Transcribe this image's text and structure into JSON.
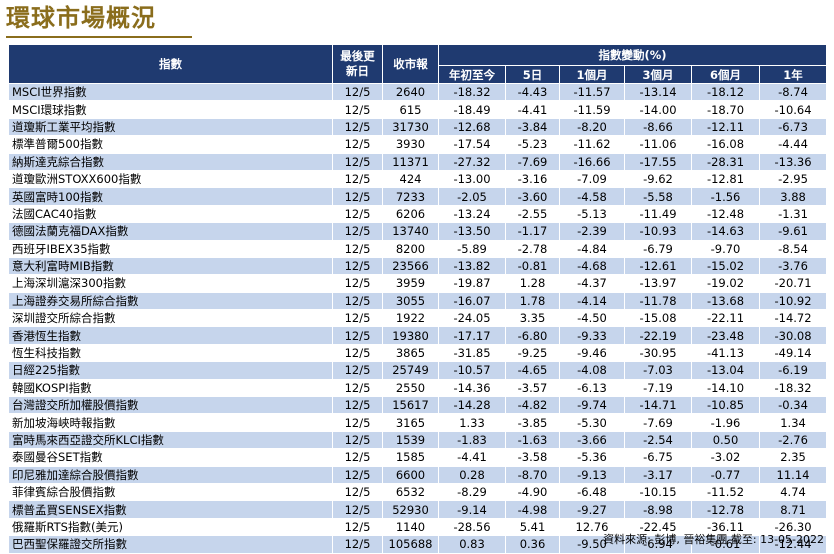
{
  "title": "環球市場概況",
  "headers": {
    "index": "指數",
    "last_update": "最後更新日",
    "close": "收市報",
    "change_group": "指數變動(%)",
    "periods": [
      "年初至今",
      "5日",
      "1個月",
      "3個月",
      "6個月",
      "1年"
    ]
  },
  "rows": [
    {
      "name": "MSCI世界指數",
      "date": "12/5",
      "close": "2640",
      "ytd": "-18.32",
      "d5": "-4.43",
      "m1": "-11.57",
      "m3": "-13.14",
      "m6": "-18.12",
      "y1": "-8.74"
    },
    {
      "name": "MSCI環球指數",
      "date": "12/5",
      "close": "615",
      "ytd": "-18.49",
      "d5": "-4.41",
      "m1": "-11.59",
      "m3": "-14.00",
      "m6": "-18.70",
      "y1": "-10.64"
    },
    {
      "name": "道瓊斯工業平均指數",
      "date": "12/5",
      "close": "31730",
      "ytd": "-12.68",
      "d5": "-3.84",
      "m1": "-8.20",
      "m3": "-8.66",
      "m6": "-12.11",
      "y1": "-6.73"
    },
    {
      "name": "標準普爾500指數",
      "date": "12/5",
      "close": "3930",
      "ytd": "-17.54",
      "d5": "-5.23",
      "m1": "-11.62",
      "m3": "-11.06",
      "m6": "-16.08",
      "y1": "-4.44"
    },
    {
      "name": "納斯達克綜合指數",
      "date": "12/5",
      "close": "11371",
      "ytd": "-27.32",
      "d5": "-7.69",
      "m1": "-16.66",
      "m3": "-17.55",
      "m6": "-28.31",
      "y1": "-13.36"
    },
    {
      "name": "道瓊歐洲STOXX600指數",
      "date": "12/5",
      "close": "424",
      "ytd": "-13.00",
      "d5": "-3.16",
      "m1": "-7.09",
      "m3": "-9.62",
      "m6": "-12.81",
      "y1": "-2.95"
    },
    {
      "name": "英國富時100指數",
      "date": "12/5",
      "close": "7233",
      "ytd": "-2.05",
      "d5": "-3.60",
      "m1": "-4.58",
      "m3": "-5.58",
      "m6": "-1.56",
      "y1": "3.88"
    },
    {
      "name": "法國CAC40指數",
      "date": "12/5",
      "close": "6206",
      "ytd": "-13.24",
      "d5": "-2.55",
      "m1": "-5.13",
      "m3": "-11.49",
      "m6": "-12.48",
      "y1": "-1.31"
    },
    {
      "name": "德國法蘭克福DAX指數",
      "date": "12/5",
      "close": "13740",
      "ytd": "-13.50",
      "d5": "-1.17",
      "m1": "-2.39",
      "m3": "-10.93",
      "m6": "-14.63",
      "y1": "-9.61"
    },
    {
      "name": "西班牙IBEX35指數",
      "date": "12/5",
      "close": "8200",
      "ytd": "-5.89",
      "d5": "-2.78",
      "m1": "-4.84",
      "m3": "-6.79",
      "m6": "-9.70",
      "y1": "-8.54"
    },
    {
      "name": "意大利富時MIB指數",
      "date": "12/5",
      "close": "23566",
      "ytd": "-13.82",
      "d5": "-0.81",
      "m1": "-4.68",
      "m3": "-12.61",
      "m6": "-15.02",
      "y1": "-3.76"
    },
    {
      "name": "上海深圳滬深300指數",
      "date": "12/5",
      "close": "3959",
      "ytd": "-19.87",
      "d5": "1.28",
      "m1": "-4.37",
      "m3": "-13.97",
      "m6": "-19.02",
      "y1": "-20.71"
    },
    {
      "name": "上海證券交易所綜合指數",
      "date": "12/5",
      "close": "3055",
      "ytd": "-16.07",
      "d5": "1.78",
      "m1": "-4.14",
      "m3": "-11.78",
      "m6": "-13.68",
      "y1": "-10.92"
    },
    {
      "name": "深圳證交所綜合指數",
      "date": "12/5",
      "close": "1922",
      "ytd": "-24.05",
      "d5": "3.35",
      "m1": "-4.50",
      "m3": "-15.08",
      "m6": "-22.11",
      "y1": "-14.72"
    },
    {
      "name": "香港恆生指數",
      "date": "12/5",
      "close": "19380",
      "ytd": "-17.17",
      "d5": "-6.80",
      "m1": "-9.33",
      "m3": "-22.19",
      "m6": "-23.48",
      "y1": "-30.08"
    },
    {
      "name": "恆生科技指數",
      "date": "12/5",
      "close": "3865",
      "ytd": "-31.85",
      "d5": "-9.25",
      "m1": "-9.46",
      "m3": "-30.95",
      "m6": "-41.13",
      "y1": "-49.14"
    },
    {
      "name": "日經225指數",
      "date": "12/5",
      "close": "25749",
      "ytd": "-10.57",
      "d5": "-4.65",
      "m1": "-4.08",
      "m3": "-7.03",
      "m6": "-13.04",
      "y1": "-6.19"
    },
    {
      "name": "韓國KOSPI指數",
      "date": "12/5",
      "close": "2550",
      "ytd": "-14.36",
      "d5": "-3.57",
      "m1": "-6.13",
      "m3": "-7.19",
      "m6": "-14.10",
      "y1": "-18.32"
    },
    {
      "name": "台灣證交所加權股價指數",
      "date": "12/5",
      "close": "15617",
      "ytd": "-14.28",
      "d5": "-4.82",
      "m1": "-9.74",
      "m3": "-14.71",
      "m6": "-10.85",
      "y1": "-0.34"
    },
    {
      "name": "新加坡海峽時報指數",
      "date": "12/5",
      "close": "3165",
      "ytd": "1.33",
      "d5": "-3.85",
      "m1": "-5.30",
      "m3": "-7.69",
      "m6": "-1.96",
      "y1": "1.34"
    },
    {
      "name": "富時馬來西亞證交所KLCI指數",
      "date": "12/5",
      "close": "1539",
      "ytd": "-1.83",
      "d5": "-1.63",
      "m1": "-3.66",
      "m3": "-2.54",
      "m6": "0.50",
      "y1": "-2.76"
    },
    {
      "name": "泰國曼谷SET指數",
      "date": "12/5",
      "close": "1585",
      "ytd": "-4.41",
      "d5": "-3.58",
      "m1": "-5.36",
      "m3": "-6.75",
      "m6": "-3.02",
      "y1": "2.35"
    },
    {
      "name": "印尼雅加達綜合股價指數",
      "date": "12/5",
      "close": "6600",
      "ytd": "0.28",
      "d5": "-8.70",
      "m1": "-9.13",
      "m3": "-3.17",
      "m6": "-0.77",
      "y1": "11.14"
    },
    {
      "name": "菲律賓綜合股價指數",
      "date": "12/5",
      "close": "6532",
      "ytd": "-8.29",
      "d5": "-4.90",
      "m1": "-6.48",
      "m3": "-10.15",
      "m6": "-11.52",
      "y1": "4.74"
    },
    {
      "name": "標普孟買SENSEX指數",
      "date": "12/5",
      "close": "52930",
      "ytd": "-9.14",
      "d5": "-4.98",
      "m1": "-9.27",
      "m3": "-8.98",
      "m6": "-12.78",
      "y1": "8.71"
    },
    {
      "name": "俄羅斯RTS指數(美元)",
      "date": "12/5",
      "close": "1140",
      "ytd": "-28.56",
      "d5": "5.41",
      "m1": "12.76",
      "m3": "-22.45",
      "m6": "-36.11",
      "y1": "-26.30"
    },
    {
      "name": "巴西聖保羅證交所指數",
      "date": "12/5",
      "close": "105688",
      "ytd": "0.83",
      "d5": "0.36",
      "m1": "-9.50",
      "m3": "-6.94",
      "m6": "-0.61",
      "y1": "-12.44"
    }
  ],
  "footer": "資料來源: 彭博, 晉裕集團 截至: 13-05-2022"
}
